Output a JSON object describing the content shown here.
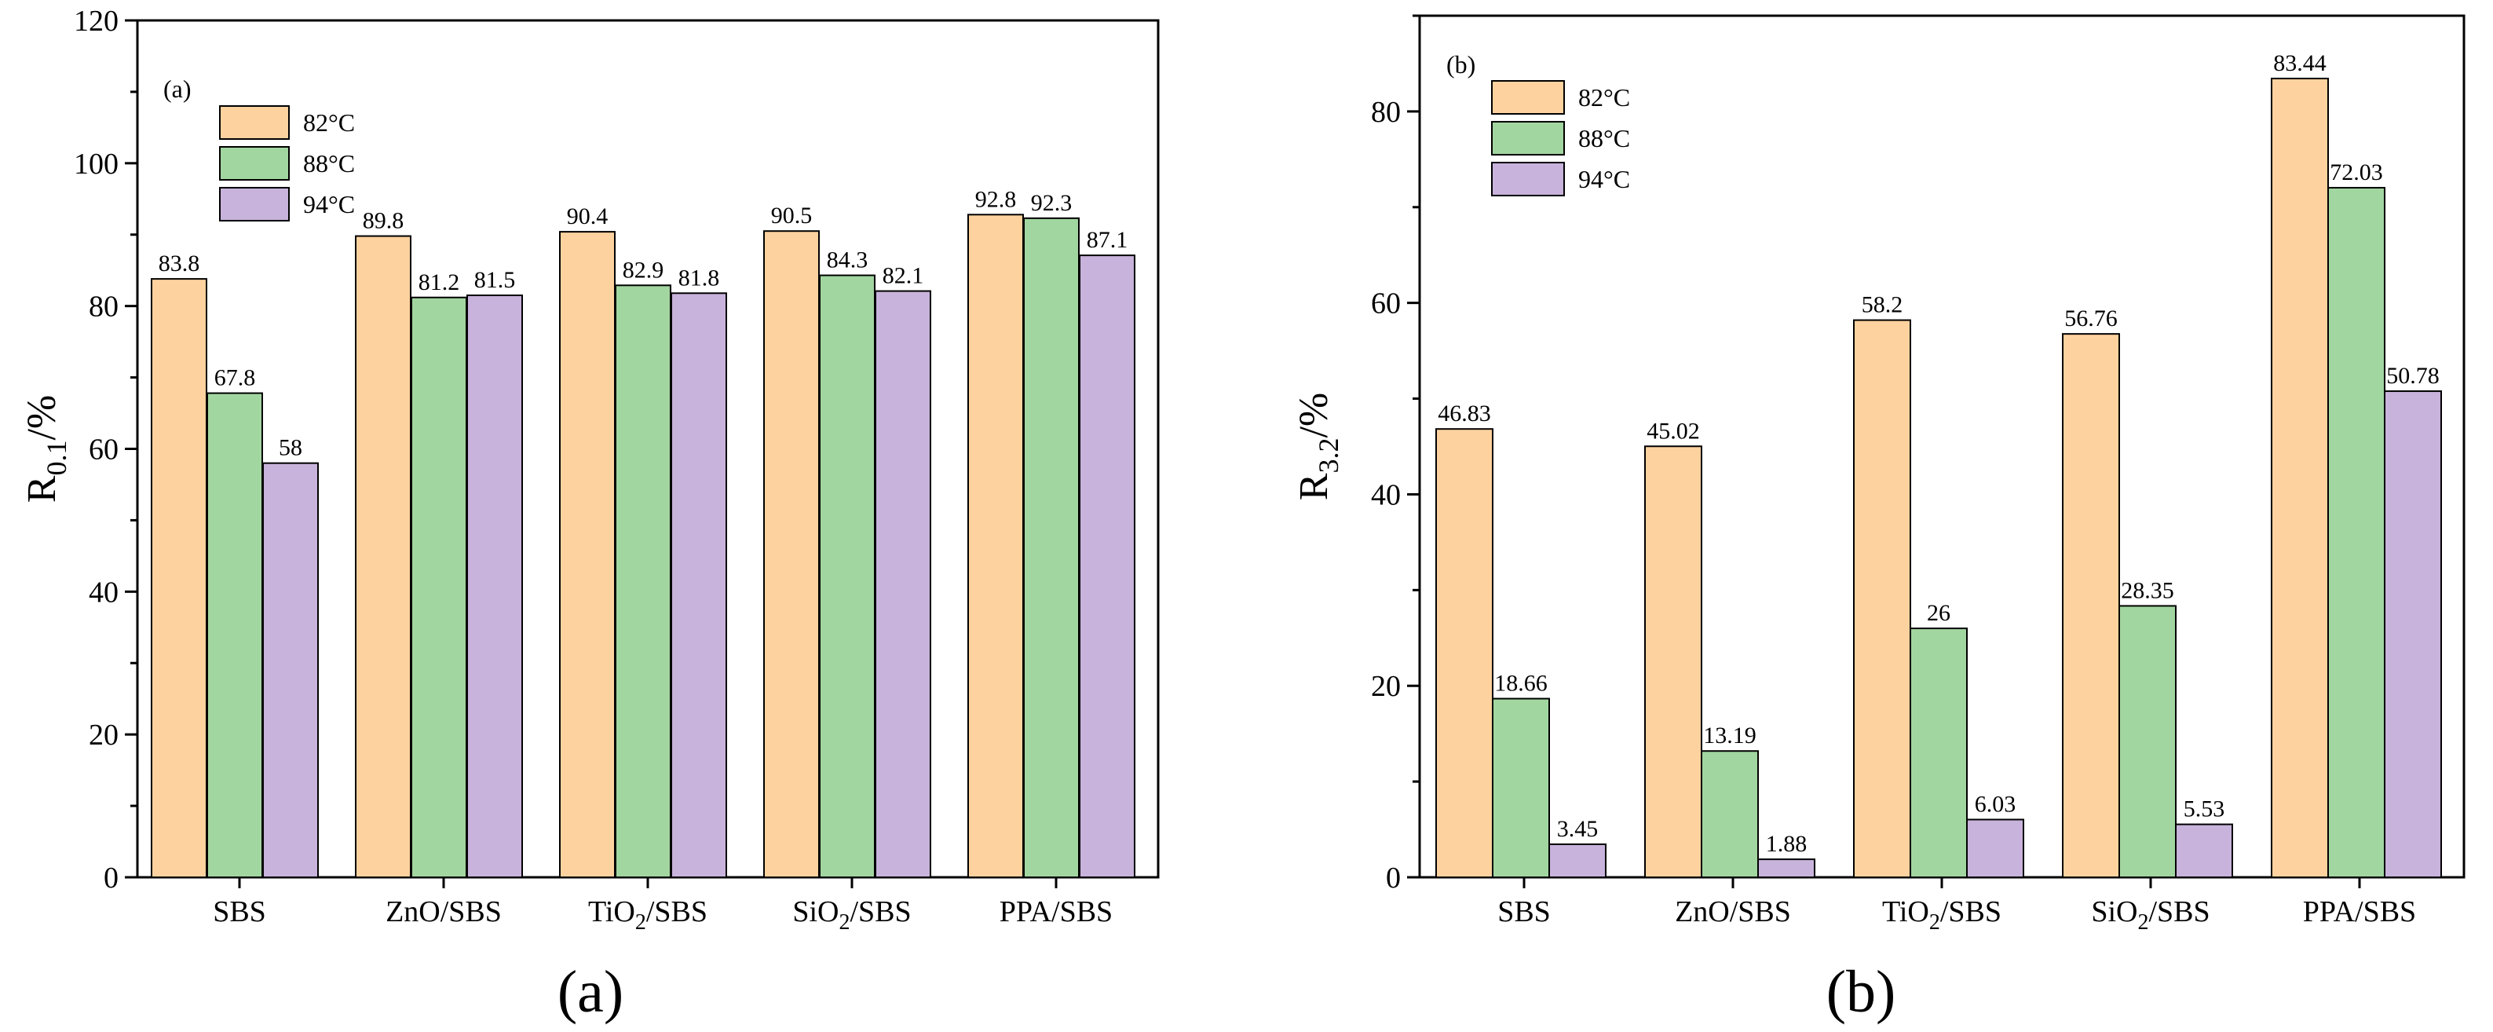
{
  "captions": {
    "a": "(a)",
    "b": "(b)"
  },
  "chart_data": [
    {
      "type": "bar",
      "panel_label": "(a)",
      "ylabel": {
        "main": "R",
        "sub": "0.1",
        "suffix": "/%"
      },
      "xlabel": "",
      "ylim": [
        0,
        120
      ],
      "yticks": [
        0,
        20,
        40,
        60,
        80,
        100,
        120
      ],
      "grid": false,
      "legend_position": "top-left",
      "categories": [
        {
          "base": "SBS"
        },
        {
          "base": "ZnO/SBS"
        },
        {
          "base": "TiO",
          "sub": "2",
          "rest": "/SBS"
        },
        {
          "base": "SiO",
          "sub": "2",
          "rest": "/SBS"
        },
        {
          "base": "PPA/SBS"
        }
      ],
      "series": [
        {
          "name": "82°C",
          "color": "#fdd29f",
          "values": [
            83.8,
            89.8,
            90.4,
            90.5,
            92.8
          ],
          "labels": [
            "83.8",
            "89.8",
            "90.4",
            "90.5",
            "92.8"
          ]
        },
        {
          "name": "88°C",
          "color": "#a2d6a0",
          "values": [
            67.8,
            81.2,
            82.9,
            84.3,
            92.3
          ],
          "labels": [
            "67.8",
            "81.2",
            "82.9",
            "84.3",
            "92.3"
          ]
        },
        {
          "name": "94°C",
          "color": "#c8b3dc",
          "values": [
            58,
            81.5,
            81.8,
            82.1,
            87.1
          ],
          "labels": [
            "58",
            "81.5",
            "81.8",
            "82.1",
            "87.1"
          ]
        }
      ]
    },
    {
      "type": "bar",
      "panel_label": "(b)",
      "ylabel": {
        "main": "R",
        "sub": "3.2",
        "suffix": "/%"
      },
      "xlabel": "",
      "ylim": [
        0,
        90
      ],
      "yticks": [
        0,
        20,
        40,
        60,
        80
      ],
      "grid": false,
      "legend_position": "top-left",
      "categories": [
        {
          "base": "SBS"
        },
        {
          "base": "ZnO/SBS"
        },
        {
          "base": "TiO",
          "sub": "2",
          "rest": "/SBS"
        },
        {
          "base": "SiO",
          "sub": "2",
          "rest": "/SBS"
        },
        {
          "base": "PPA/SBS"
        }
      ],
      "series": [
        {
          "name": "82°C",
          "color": "#fdd29f",
          "values": [
            46.83,
            45.02,
            58.2,
            56.76,
            83.44
          ],
          "labels": [
            "46.83",
            "45.02",
            "58.2",
            "56.76",
            "83.44"
          ]
        },
        {
          "name": "88°C",
          "color": "#a2d6a0",
          "values": [
            18.66,
            13.19,
            26,
            28.35,
            72.03
          ],
          "labels": [
            "18.66",
            "13.19",
            "26",
            "28.35",
            "72.03"
          ]
        },
        {
          "name": "94°C",
          "color": "#c8b3dc",
          "values": [
            3.45,
            1.88,
            6.03,
            5.53,
            50.78
          ],
          "labels": [
            "3.45",
            "1.88",
            "6.03",
            "5.53",
            "50.78"
          ]
        }
      ]
    }
  ]
}
